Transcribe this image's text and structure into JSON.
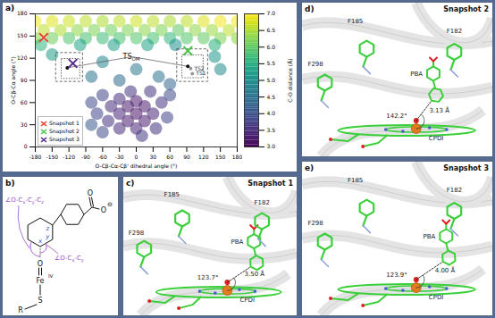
{
  "chart_data": {
    "type": "scatter",
    "panel_label": "a)",
    "x_label": "O-Cβ-Cα-Cβ' dihedral angle (°)",
    "y_label": "O-Cβ-Cα angle (°)",
    "xlim": [
      -180,
      180
    ],
    "xticks": [
      -180,
      -150,
      -120,
      -90,
      -60,
      -30,
      0,
      30,
      60,
      90,
      120,
      150,
      180
    ],
    "ylim": [
      0,
      180
    ],
    "yticks": [
      0,
      30,
      60,
      90,
      120,
      150,
      180
    ],
    "points": [
      [
        -180,
        170,
        6.9
      ],
      [
        -150,
        170,
        6.8
      ],
      [
        -120,
        170,
        6.7
      ],
      [
        -90,
        170,
        6.6
      ],
      [
        -60,
        170,
        6.5
      ],
      [
        -30,
        170,
        6.6
      ],
      [
        0,
        170,
        6.7
      ],
      [
        30,
        170,
        6.6
      ],
      [
        60,
        170,
        6.5
      ],
      [
        90,
        170,
        6.6
      ],
      [
        120,
        170,
        6.8
      ],
      [
        150,
        170,
        6.9
      ],
      [
        180,
        170,
        6.9
      ],
      [
        -165,
        158,
        6.6
      ],
      [
        -135,
        158,
        6.5
      ],
      [
        -105,
        158,
        6.3
      ],
      [
        -75,
        158,
        6.2
      ],
      [
        -45,
        158,
        6.1
      ],
      [
        -15,
        158,
        6.2
      ],
      [
        15,
        158,
        6.3
      ],
      [
        45,
        158,
        6.2
      ],
      [
        75,
        158,
        6.0
      ],
      [
        105,
        158,
        6.3
      ],
      [
        135,
        158,
        6.4
      ],
      [
        165,
        158,
        6.6
      ],
      [
        -180,
        147,
        6.3
      ],
      [
        -150,
        147,
        6.1
      ],
      [
        -120,
        147,
        5.9
      ],
      [
        -90,
        147,
        5.8
      ],
      [
        -60,
        147,
        5.7
      ],
      [
        -30,
        147,
        5.8
      ],
      [
        0,
        147,
        5.9
      ],
      [
        30,
        147,
        5.8
      ],
      [
        60,
        147,
        5.6
      ],
      [
        90,
        147,
        5.9
      ],
      [
        120,
        147,
        6.0
      ],
      [
        150,
        147,
        6.2
      ],
      [
        180,
        147,
        6.3
      ],
      [
        -170,
        138,
        5.6
      ],
      [
        -100,
        138,
        5.3
      ],
      [
        -40,
        138,
        5.2
      ],
      [
        20,
        138,
        5.3
      ],
      [
        70,
        138,
        5.0
      ],
      [
        140,
        138,
        5.5
      ],
      [
        -60,
        115,
        4.8
      ],
      [
        0,
        105,
        4.6
      ],
      [
        40,
        95,
        4.5
      ],
      [
        -30,
        90,
        4.4
      ],
      [
        60,
        85,
        4.3
      ],
      [
        -80,
        95,
        4.5
      ],
      [
        150,
        105,
        4.9
      ],
      [
        140,
        122,
        5.1
      ],
      [
        -150,
        125,
        5.2
      ],
      [
        -80,
        60,
        3.9
      ],
      [
        -70,
        45,
        3.8
      ],
      [
        -60,
        70,
        3.8
      ],
      [
        -50,
        35,
        3.6
      ],
      [
        -45,
        55,
        3.5
      ],
      [
        -30,
        25,
        3.5
      ],
      [
        -30,
        45,
        3.4
      ],
      [
        -30,
        65,
        3.5
      ],
      [
        -15,
        35,
        3.3
      ],
      [
        -15,
        55,
        3.3
      ],
      [
        -10,
        75,
        3.6
      ],
      [
        0,
        25,
        3.4
      ],
      [
        0,
        45,
        3.2
      ],
      [
        0,
        62,
        3.3
      ],
      [
        15,
        35,
        3.3
      ],
      [
        15,
        55,
        3.3
      ],
      [
        25,
        75,
        3.6
      ],
      [
        30,
        45,
        3.4
      ],
      [
        35,
        25,
        3.6
      ],
      [
        45,
        60,
        3.6
      ],
      [
        55,
        40,
        3.8
      ],
      [
        -60,
        20,
        3.9
      ],
      [
        60,
        70,
        3.9
      ],
      [
        -80,
        30,
        4.1
      ],
      [
        10,
        15,
        3.7
      ]
    ],
    "colorbar": {
      "label": "C-O distance (Å)",
      "range": [
        3,
        7
      ],
      "ticks": [
        {
          "value": 3,
          "label": "3.0"
        },
        {
          "value": 3.5,
          "label": "3.5"
        },
        {
          "value": 4,
          "label": "4.0"
        },
        {
          "value": 4.5,
          "label": "4.5"
        },
        {
          "value": 5,
          "label": "5.0"
        },
        {
          "value": 5.5,
          "label": "5.5"
        },
        {
          "value": 6,
          "label": "6.0"
        },
        {
          "value": 6.5,
          "label": "6.5"
        },
        {
          "value": 7,
          "label": "7.0"
        }
      ]
    },
    "series": [
      {
        "name": "Snapshot 1",
        "color": "#e8402f",
        "marker": "x",
        "x": [
          -165
        ],
        "y": [
          148
        ]
      },
      {
        "name": "Snapshot 2",
        "color": "#4cc24a",
        "marker": "x",
        "x": [
          92
        ],
        "y": [
          130
        ]
      },
      {
        "name": "Snapshot 3",
        "color": "#5a2d8c",
        "marker": "x",
        "x": [
          -113
        ],
        "y": [
          113
        ]
      }
    ],
    "legend": "bottom-left",
    "ts_om": {
      "text": "TS",
      "subscript": "OM",
      "x": -8,
      "y": 122,
      "points_x": [
        -123,
        92
      ],
      "points_y": [
        107,
        109
      ]
    },
    "ts_points": {
      "labels": [
        "TS2",
        "TS1"
      ],
      "x": [
        97,
        100
      ],
      "y": [
        106,
        99
      ]
    },
    "boxes": [
      {
        "x": [
          -143,
          -95
        ],
        "y": [
          88,
          127
        ]
      },
      {
        "x": [
          -133,
          -100
        ],
        "y": [
          92,
          119
        ]
      },
      {
        "x": [
          73,
          128
        ],
        "y": [
          88,
          132
        ]
      },
      {
        "x": [
          82,
          120
        ],
        "y": [
          93,
          124
        ]
      }
    ]
  },
  "structure": {
    "panel_label": "b)",
    "angle_labels": [
      [
        "∠O-C",
        "x",
        "-C",
        "y",
        "-C",
        "z"
      ],
      [
        "∠O-C",
        "x",
        "-C",
        "y"
      ]
    ],
    "ring_atoms": [
      "z",
      "y",
      "x"
    ],
    "metal": "Fe",
    "oxidation_state": "IV",
    "oxo": "O",
    "thiolate": "S",
    "r_group": "R",
    "carboxylate": [
      "O",
      "O"
    ],
    "charge": "⊖"
  },
  "snapshots": [
    {
      "panel_label": "c)",
      "title": "Snapshot 1",
      "residues": [
        "F185",
        "F182",
        "F298"
      ],
      "ligand": "PBA",
      "heme": "CPDI",
      "distance": {
        "value": 3.5,
        "label": "3.50 Å"
      },
      "angle": {
        "value": 123.7,
        "label": "123.7°"
      }
    },
    {
      "panel_label": "d)",
      "title": "Snapshot 2",
      "residues": [
        "F185",
        "F182",
        "F298"
      ],
      "ligand": "PBA",
      "heme": "CPDI",
      "distance": {
        "value": 3.13,
        "label": "3.13 Å"
      },
      "angle": {
        "value": 142.2,
        "label": "142.2°"
      }
    },
    {
      "panel_label": "e)",
      "title": "Snapshot 3",
      "residues": [
        "F185",
        "F182",
        "F298"
      ],
      "ligand": "PBA",
      "heme": "CPDI",
      "distance": {
        "value": 4.0,
        "label": "4.00 Å"
      },
      "angle": {
        "value": 123.9,
        "label": "123.9°"
      }
    }
  ]
}
